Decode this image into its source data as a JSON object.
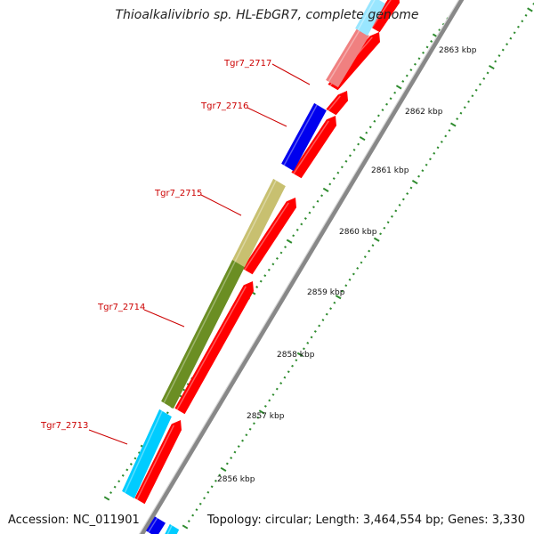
{
  "title": "Thioalkalivibrio sp. HL-EbGR7, complete genome",
  "accession_label": "Accession: NC_011901",
  "summary_label": "Topology: circular; Length: 3,464,554 bp; Genes: 3,330",
  "colors": {
    "forward_cds": "#ff0000",
    "blue_block": "#0000ee",
    "cyan_block": "#00ccff",
    "olive_block": "#6b8e23",
    "khaki_block": "#c8c070",
    "pink_block": "#f08080",
    "backbone": "#888888",
    "tick": "#2e8b2e",
    "gene_label": "#cc0000",
    "kbp_label": "#111111"
  },
  "kbp_ticks": [
    "2856 kbp",
    "2857 kbp",
    "2858 kbp",
    "2859 kbp",
    "2860 kbp",
    "2861 kbp",
    "2862 kbp",
    "2863 kbp"
  ],
  "gene_labels": [
    "Tgr7_2713",
    "Tgr7_2714",
    "Tgr7_2715",
    "Tgr7_2716",
    "Tgr7_2717"
  ]
}
